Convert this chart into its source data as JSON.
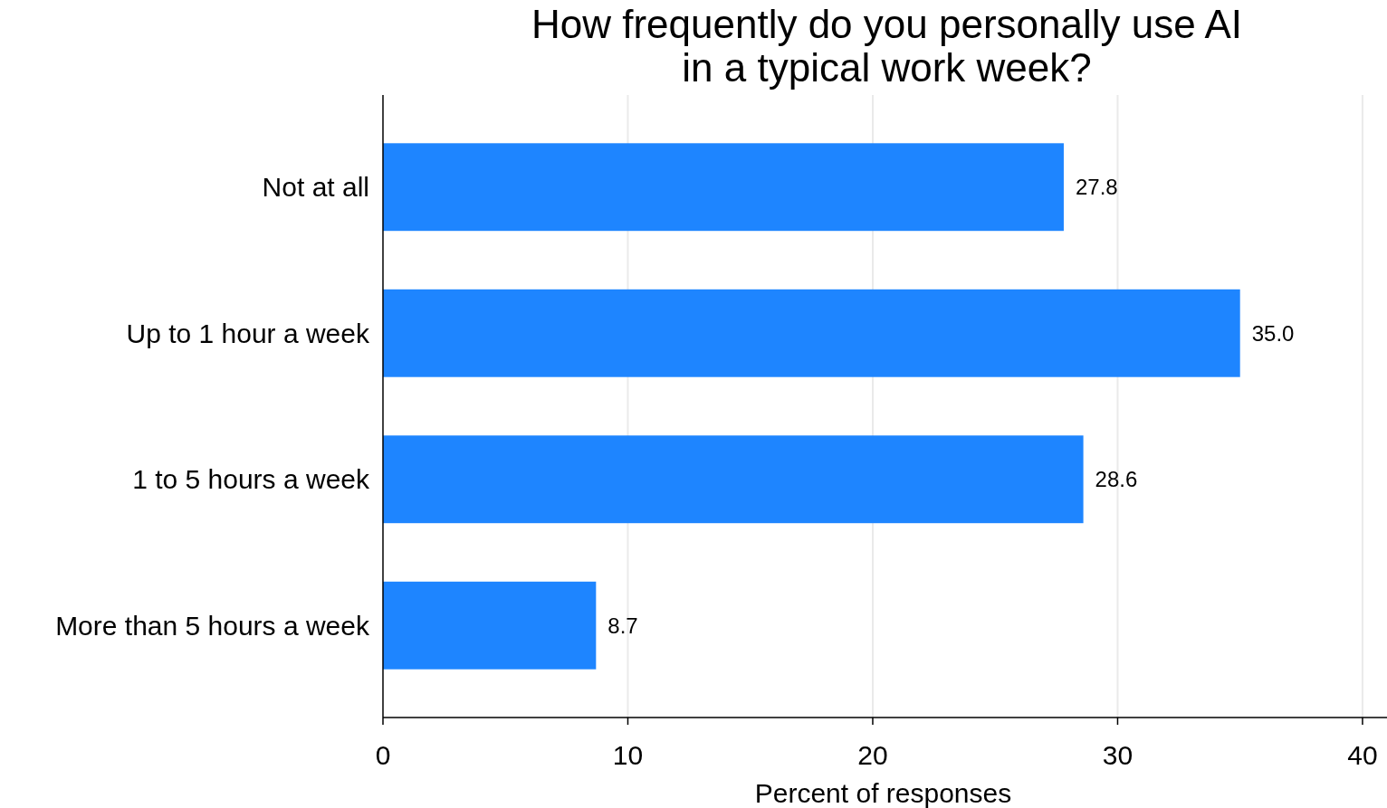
{
  "chart_data": {
    "type": "bar",
    "orientation": "horizontal",
    "title": "How frequently do you personally use AI\nin a typical work week?",
    "xlabel": "Percent of responses",
    "categories": [
      "Not at all",
      "Up to 1 hour a week",
      "1 to 5 hours a week",
      "More than 5 hours a week"
    ],
    "values": [
      27.8,
      35.0,
      28.6,
      8.7
    ],
    "value_labels": [
      "27.8",
      "35.0",
      "28.6",
      "8.7"
    ],
    "color": "#1e85ff",
    "xlim": [
      0,
      41
    ],
    "xticks": [
      0,
      10,
      20,
      30,
      40
    ],
    "grid": "x"
  }
}
